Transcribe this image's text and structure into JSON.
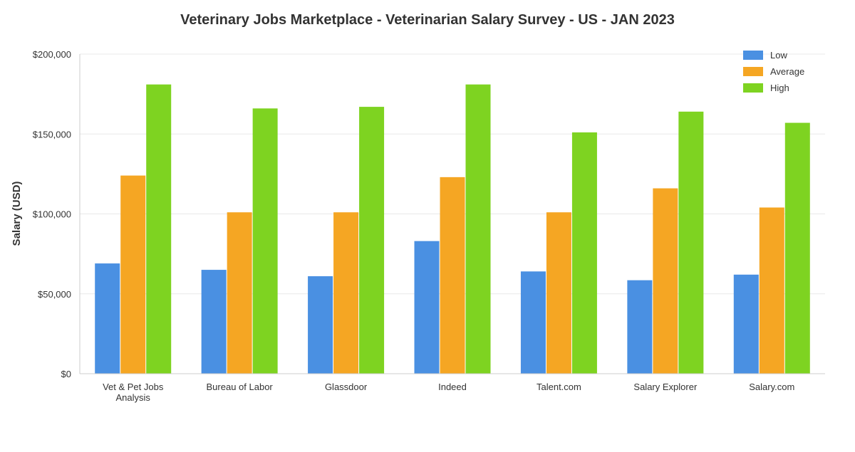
{
  "chart_data": {
    "type": "bar",
    "title": "Veterinary Jobs Marketplace - Veterinarian Salary Survey - US - JAN 2023",
    "xlabel": "",
    "ylabel": "Salary (USD)",
    "ylim": [
      0,
      200000
    ],
    "yticks": [
      0,
      50000,
      100000,
      150000,
      200000
    ],
    "ytick_labels": [
      "$0",
      "$50,000",
      "$100,000",
      "$150,000",
      "$200,000"
    ],
    "grid": true,
    "legend_position": "top-right",
    "categories": [
      [
        "Vet & Pet Jobs",
        "Analysis"
      ],
      [
        "Bureau of Labor"
      ],
      [
        "Glassdoor"
      ],
      [
        "Indeed"
      ],
      [
        "Talent.com"
      ],
      [
        "Salary Explorer"
      ],
      [
        "Salary.com"
      ]
    ],
    "series": [
      {
        "name": "Low",
        "color": "#4a90e2",
        "values": [
          69000,
          65000,
          61000,
          83000,
          64000,
          58500,
          62000
        ]
      },
      {
        "name": "Average",
        "color": "#f5a623",
        "values": [
          124000,
          101000,
          101000,
          123000,
          101000,
          116000,
          104000
        ]
      },
      {
        "name": "High",
        "color": "#7ed321",
        "values": [
          181000,
          166000,
          167000,
          181000,
          151000,
          164000,
          157000
        ]
      }
    ]
  }
}
